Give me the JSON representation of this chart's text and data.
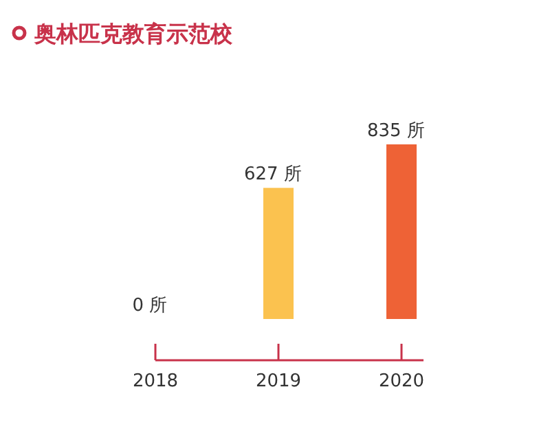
{
  "chart_data": {
    "type": "bar",
    "title": "奥林匹克教育示范校",
    "categories": [
      "2018",
      "2019",
      "2020"
    ],
    "values": [
      0,
      627,
      835
    ],
    "colors": [
      null,
      "#fbc24f",
      "#ee6236"
    ],
    "value_labels": [
      "0 所",
      "627 所",
      "835 所"
    ]
  }
}
